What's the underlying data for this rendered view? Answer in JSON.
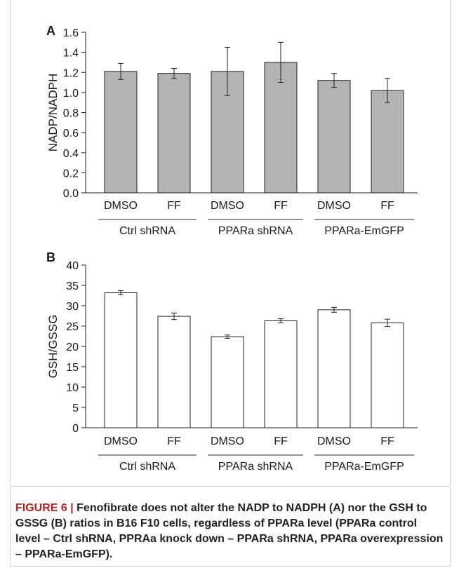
{
  "figure": {
    "caption_label": "FIGURE 6 | ",
    "caption_text": "Fenofibrate does not alter the NADP to NADPH (A) nor the GSH to GSSG (B) ratios in B16 F10 cells, regardless of PPARa level (PPARa control level – Ctrl shRNA, PPRAa knock down – PPARa shRNA, PPARa overexpression – PPARa-EmGFP)."
  },
  "chart_data": [
    {
      "panel": "A",
      "type": "bar",
      "ylabel": "NADP/NADPH",
      "ylim": [
        0,
        1.6
      ],
      "yticks": [
        "0.0",
        "0.2",
        "0.4",
        "0.6",
        "0.8",
        "1.0",
        "1.2",
        "1.4",
        "1.6"
      ],
      "categories": [
        "DMSO",
        "FF",
        "DMSO",
        "FF",
        "DMSO",
        "FF"
      ],
      "groups": [
        "Ctrl shRNA",
        "PPARa shRNA",
        "PPARa-EmGFP"
      ],
      "values": [
        1.21,
        1.19,
        1.21,
        1.3,
        1.12,
        1.02
      ],
      "errors": [
        0.08,
        0.05,
        0.24,
        0.2,
        0.07,
        0.12
      ],
      "bar_color": "#b3b3b3"
    },
    {
      "panel": "B",
      "type": "bar",
      "ylabel": "GSH/GSSG",
      "ylim": [
        0,
        40
      ],
      "yticks": [
        "0",
        "5",
        "10",
        "15",
        "20",
        "25",
        "30",
        "35",
        "40"
      ],
      "categories": [
        "DMSO",
        "FF",
        "DMSO",
        "FF",
        "DMSO",
        "FF"
      ],
      "groups": [
        "Ctrl shRNA",
        "PPARa shRNA",
        "PPARa-EmGFP"
      ],
      "values": [
        33.2,
        27.4,
        22.4,
        26.3,
        29.0,
        25.8
      ],
      "errors": [
        0.5,
        0.8,
        0.4,
        0.5,
        0.6,
        0.9
      ],
      "bar_color": "#ffffff"
    }
  ]
}
